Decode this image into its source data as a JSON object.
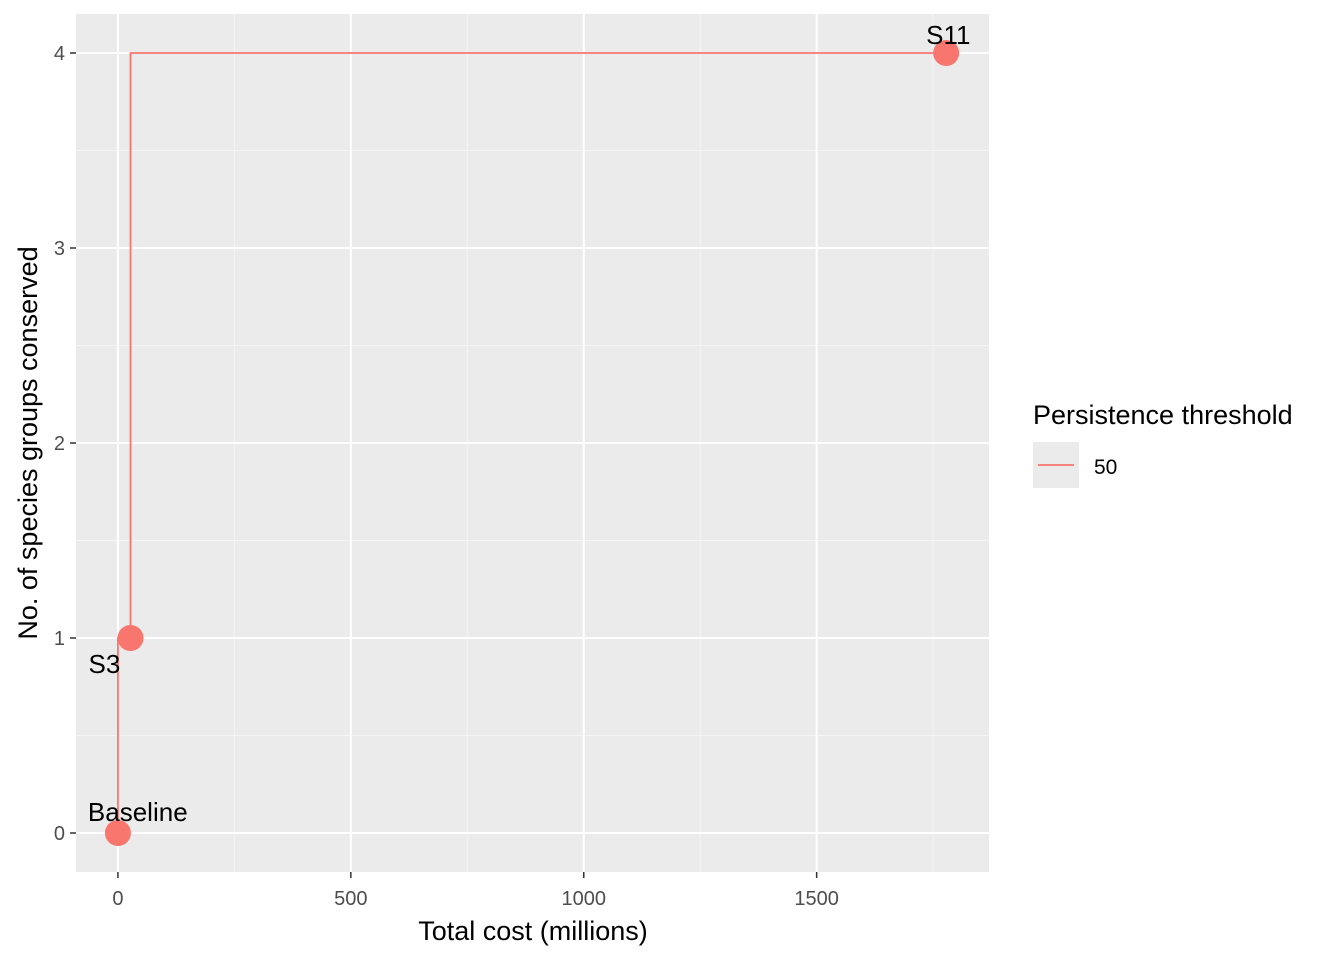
{
  "chart_data": {
    "type": "line",
    "step": true,
    "xlabel": "Total cost (millions)",
    "ylabel": "No. of species groups conserved",
    "xlim": [
      -90,
      1870
    ],
    "ylim": [
      -0.2,
      4.2
    ],
    "x_ticks": [
      0,
      500,
      1000,
      1500
    ],
    "y_ticks": [
      0,
      1,
      2,
      3,
      4
    ],
    "x_tick_labels": [
      "0",
      "500",
      "1000",
      "1500"
    ],
    "y_tick_labels": [
      "0",
      "1",
      "2",
      "3",
      "4"
    ],
    "grid": true,
    "legend": {
      "title": "Persistence threshold",
      "position": "right",
      "entries": [
        "50"
      ]
    },
    "series": [
      {
        "name": "50",
        "color": "#F8766D",
        "points": [
          {
            "x": 0,
            "y": 0,
            "label": "Baseline"
          },
          {
            "x": 27,
            "y": 1,
            "label": "S3"
          },
          {
            "x": 1778,
            "y": 4,
            "label": "S11"
          }
        ]
      }
    ]
  }
}
